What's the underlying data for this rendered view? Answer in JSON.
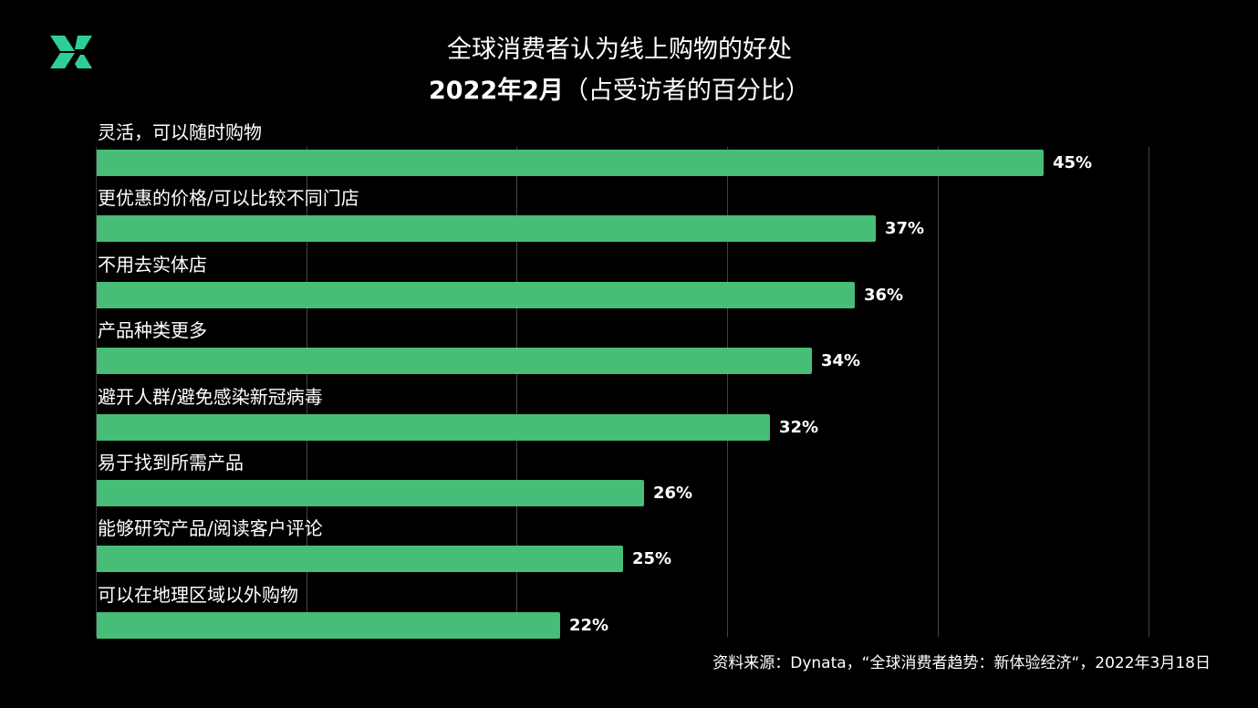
{
  "logo": {
    "icon": "x-logo-icon",
    "color": "#2ecf95"
  },
  "title": {
    "line1": "全球消费者认为线上购物的好处",
    "line2_bold": "2022年2月",
    "line2_rest": "（占受访者的百分比）"
  },
  "source": "资料来源：Dynata，“全球消费者趋势：新体验经济“，2022年3月18日",
  "colors": {
    "bar": "#47bd78",
    "background": "#000000",
    "gridline": "#444444",
    "text": "#ffffff"
  },
  "chart_data": {
    "type": "bar",
    "orientation": "horizontal",
    "title": "全球消费者认为线上购物的好处 2022年2月（占受访者的百分比）",
    "xlabel": "",
    "ylabel": "",
    "xlim": [
      0,
      50
    ],
    "grid": true,
    "gridlines_at": [
      10,
      20,
      30,
      40,
      50
    ],
    "legend": null,
    "categories": [
      "灵活，可以随时购物",
      "更优惠的价格/可以比较不同门店",
      "不用去实体店",
      "产品种类更多",
      "避开人群/避免感染新冠病毒",
      "易于找到所需产品",
      "能够研究产品/阅读客户评论",
      "可以在地理区域以外购物"
    ],
    "values": [
      45,
      37,
      36,
      34,
      32,
      26,
      25,
      22
    ],
    "value_labels": [
      "45%",
      "37%",
      "36%",
      "34%",
      "32%",
      "26%",
      "25%",
      "22%"
    ],
    "annotation": "资料来源：Dynata，“全球消费者趋势：新体验经济“，2022年3月18日"
  }
}
